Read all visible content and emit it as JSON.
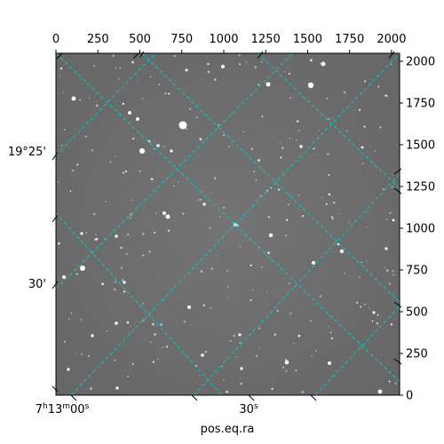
{
  "image": {
    "description_kind": "astronomical star field with celestial coordinate grid",
    "background_color": "#6f6f6f",
    "star_color": "#ffffff",
    "grid_color": "#00c8c8"
  },
  "pixel_axes": {
    "top": {
      "ticks": [
        "0",
        "250",
        "500",
        "750",
        "1000",
        "1250",
        "1500",
        "1750",
        "2000"
      ],
      "range": [
        0,
        2048
      ]
    },
    "right": {
      "ticks": [
        "0",
        "250",
        "500",
        "750",
        "1000",
        "1250",
        "1500",
        "1750",
        "2000"
      ],
      "range": [
        0,
        2048
      ]
    }
  },
  "world_axes": {
    "bottom": {
      "title": "pos.eq.ra",
      "ticks": [
        {
          "main": "7",
          "sup1": "h",
          "mid": "13",
          "sup2": "m",
          "tail": "00",
          "sup3": "s"
        },
        {
          "main": "30",
          "sup1": "s"
        }
      ]
    },
    "left": {
      "ticks": [
        "19°25'",
        "30'"
      ]
    }
  }
}
